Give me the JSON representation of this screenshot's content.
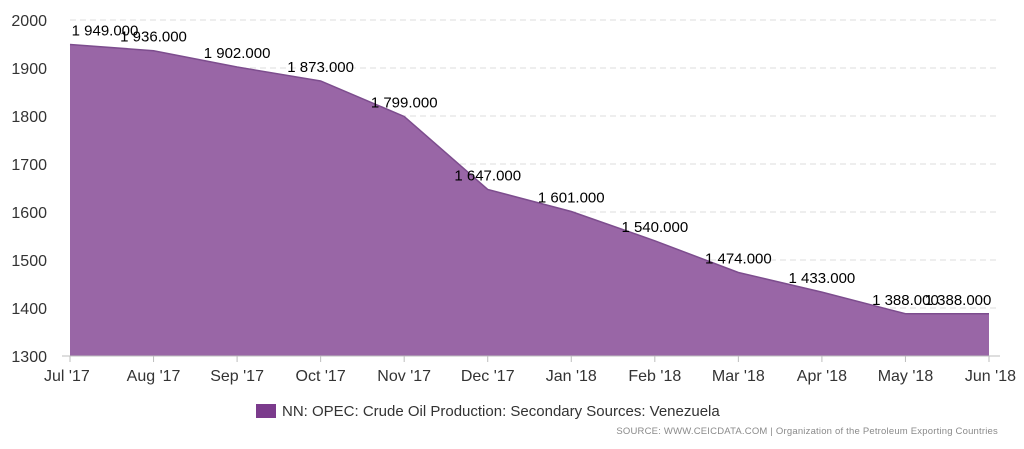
{
  "chart_data": {
    "type": "area",
    "categories": [
      "Jul '17",
      "Aug '17",
      "Sep '17",
      "Oct '17",
      "Nov '17",
      "Dec '17",
      "Jan '18",
      "Feb '18",
      "Mar '18",
      "Apr '18",
      "May '18",
      "Jun '18"
    ],
    "series": [
      {
        "name": "NN: OPEC: Crude Oil Production: Secondary Sources: Venezuela",
        "values": [
          1949,
          1936,
          1902,
          1873,
          1799,
          1647,
          1601,
          1540,
          1474,
          1433,
          1388,
          1388
        ],
        "labels": [
          "1 949.000",
          "1 936.000",
          "1 902.000",
          "1 873.000",
          "1 799.000",
          "1 647.000",
          "1 601.000",
          "1 540.000",
          "1 474.000",
          "1 433.000",
          "1 388.000",
          "1 388.000"
        ]
      }
    ],
    "yticks": [
      "1300",
      "1400",
      "1500",
      "1600",
      "1700",
      "1800",
      "1900",
      "2000"
    ],
    "ylim": [
      1300,
      2000
    ],
    "grid": true,
    "legend_position": "bottom-center",
    "colors": {
      "fill": "#9966a6",
      "line": "#7d4d8e",
      "legend": "#7b3b8c",
      "grid": "#dedede"
    }
  },
  "source": {
    "label": "SOURCE: WWW.CEICDATA.COM",
    "separator": "|",
    "org": "Organization of the Petroleum Exporting Countries"
  }
}
